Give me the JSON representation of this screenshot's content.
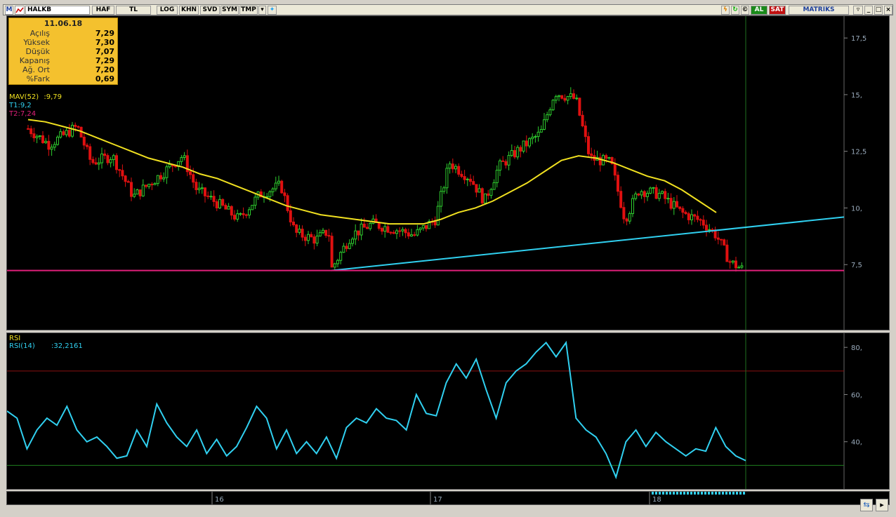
{
  "toolbar": {
    "symbol": "HALKB",
    "buttons": [
      "HAF",
      "TL",
      "LOG",
      "KHN",
      "SVD",
      "SYM",
      "TMP"
    ],
    "m_label": "M",
    "al_label": "AL",
    "sat_label": "SAT",
    "brand": "MATRIKS"
  },
  "infobox": {
    "date": "11.06.18",
    "rows": [
      {
        "label": "Açılış",
        "value": "7,29"
      },
      {
        "label": "Yüksek",
        "value": "7,30"
      },
      {
        "label": "Düşük",
        "value": "7,07"
      },
      {
        "label": "Kapanış",
        "value": "7,29"
      },
      {
        "label": "Ağ. Ort",
        "value": "7,20"
      },
      {
        "label": "%Fark",
        "value": "0,69"
      }
    ]
  },
  "indicators": {
    "mav_label": "MAV(52)",
    "mav_value": ":9,79",
    "t1_label": "T1:9,2",
    "t2_label": "T2:7,24",
    "rsi_title": "RSI",
    "rsi_label": "RSI(14)",
    "rsi_value": ":32,2161"
  },
  "price_axis": [
    "17,5",
    "15,",
    "12,5",
    "10,",
    "7,5"
  ],
  "rsi_axis": [
    "80,",
    "60,",
    "40,"
  ],
  "time_axis": [
    "16",
    "17",
    "18"
  ],
  "colors": {
    "up": "#2ecc2e",
    "down": "#e01010",
    "mav": "#f0e020",
    "trend": "#30d0f0",
    "support": "#e0207a",
    "rsi": "#30d0f0"
  },
  "chart_data": [
    {
      "type": "line",
      "title": "HALKB",
      "series": [
        {
          "name": "MAV(52)",
          "values": [
            13.9,
            13.8,
            13.6,
            13.4,
            13.1,
            12.8,
            12.5,
            12.2,
            12.0,
            11.8,
            11.5,
            11.3,
            11.0,
            10.7,
            10.4,
            10.1,
            9.9,
            9.7,
            9.6,
            9.5,
            9.4,
            9.3,
            9.3,
            9.3,
            9.5,
            9.8,
            10.0,
            10.3,
            10.7,
            11.1,
            11.6,
            12.1,
            12.3,
            12.2,
            12.0,
            11.7,
            11.4,
            11.2,
            10.8,
            10.3,
            9.8
          ]
        },
        {
          "name": "T1",
          "values": [
            7.24,
            9.3
          ]
        },
        {
          "name": "T2",
          "values": [
            7.24,
            7.24
          ]
        }
      ],
      "ylim": [
        5.0,
        18.0
      ]
    },
    {
      "type": "line",
      "title": "RSI",
      "series": [
        {
          "name": "RSI(14)",
          "values": [
            53,
            50,
            37,
            45,
            50,
            47,
            55,
            45,
            40,
            42,
            38,
            33,
            34,
            45,
            38,
            56,
            48,
            42,
            38,
            45,
            35,
            41,
            34,
            38,
            46,
            55,
            50,
            37,
            45,
            35,
            40,
            35,
            42,
            33,
            46,
            50,
            48,
            54,
            50,
            49,
            45,
            60,
            52,
            51,
            65,
            73,
            67,
            75,
            62,
            50,
            65,
            70,
            73,
            78,
            82,
            76,
            82,
            50,
            45,
            42,
            35,
            25,
            40,
            45,
            38,
            44,
            40,
            37,
            34,
            37,
            36,
            46,
            38,
            34,
            32
          ]
        }
      ],
      "ylim": [
        20,
        86
      ]
    }
  ]
}
